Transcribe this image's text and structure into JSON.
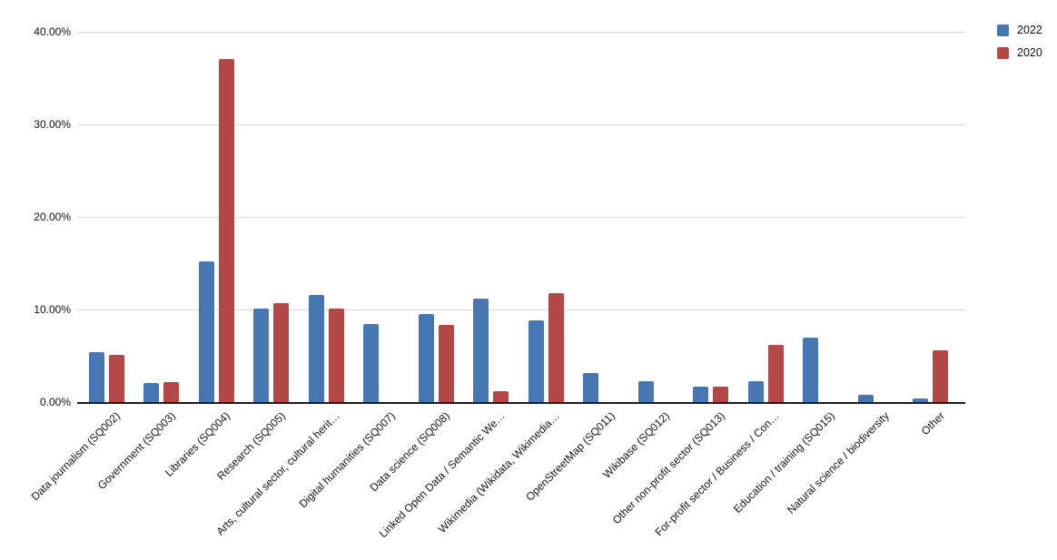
{
  "chart_data": {
    "type": "bar",
    "title": "",
    "xlabel": "",
    "ylabel": "",
    "ylim": [
      0,
      40
    ],
    "grid": true,
    "legend_position": "top-right",
    "yticks": [
      {
        "value": 0,
        "label": "0.00%"
      },
      {
        "value": 10,
        "label": "10.00%"
      },
      {
        "value": 20,
        "label": "20.00%"
      },
      {
        "value": 30,
        "label": "30.00%"
      },
      {
        "value": 40,
        "label": "40.00%"
      }
    ],
    "categories": [
      "Data journalism (SQ002)",
      "Government (SQ003)",
      "Libraries (SQ004)",
      "Research (SQ005)",
      "Arts, cultural sector, cultural herit…",
      "Digital humanities (SQ007)",
      "Data science (SQ008)",
      "Linked Open Data / Semantic We…",
      "Wikimedia (Wikidata, Wikimedia…",
      "OpenStreetMap (SQ011)",
      "Wikibase (SQ012)",
      "Other non-profit sector (SQ013)",
      "For-profit sector / Business / Con…",
      "Education / training (SQ015)",
      "Natural science / biodiversity",
      "Other"
    ],
    "series": [
      {
        "name": "2022",
        "color": "#4777B2",
        "values": [
          5.4,
          2.1,
          15.2,
          10.1,
          11.6,
          8.4,
          9.5,
          11.2,
          8.8,
          3.1,
          2.3,
          1.7,
          2.3,
          7.0,
          0.8,
          0.4
        ]
      },
      {
        "name": "2020",
        "color": "#B34846",
        "values": [
          5.1,
          2.2,
          37.1,
          10.7,
          10.1,
          0,
          8.3,
          1.2,
          11.8,
          0,
          0,
          1.7,
          6.2,
          0,
          0,
          5.6
        ]
      }
    ]
  },
  "colors": {
    "gridline": "#d9d9d9",
    "axis": "#1c1c1c",
    "text": "#111111",
    "background": "#ffffff"
  }
}
